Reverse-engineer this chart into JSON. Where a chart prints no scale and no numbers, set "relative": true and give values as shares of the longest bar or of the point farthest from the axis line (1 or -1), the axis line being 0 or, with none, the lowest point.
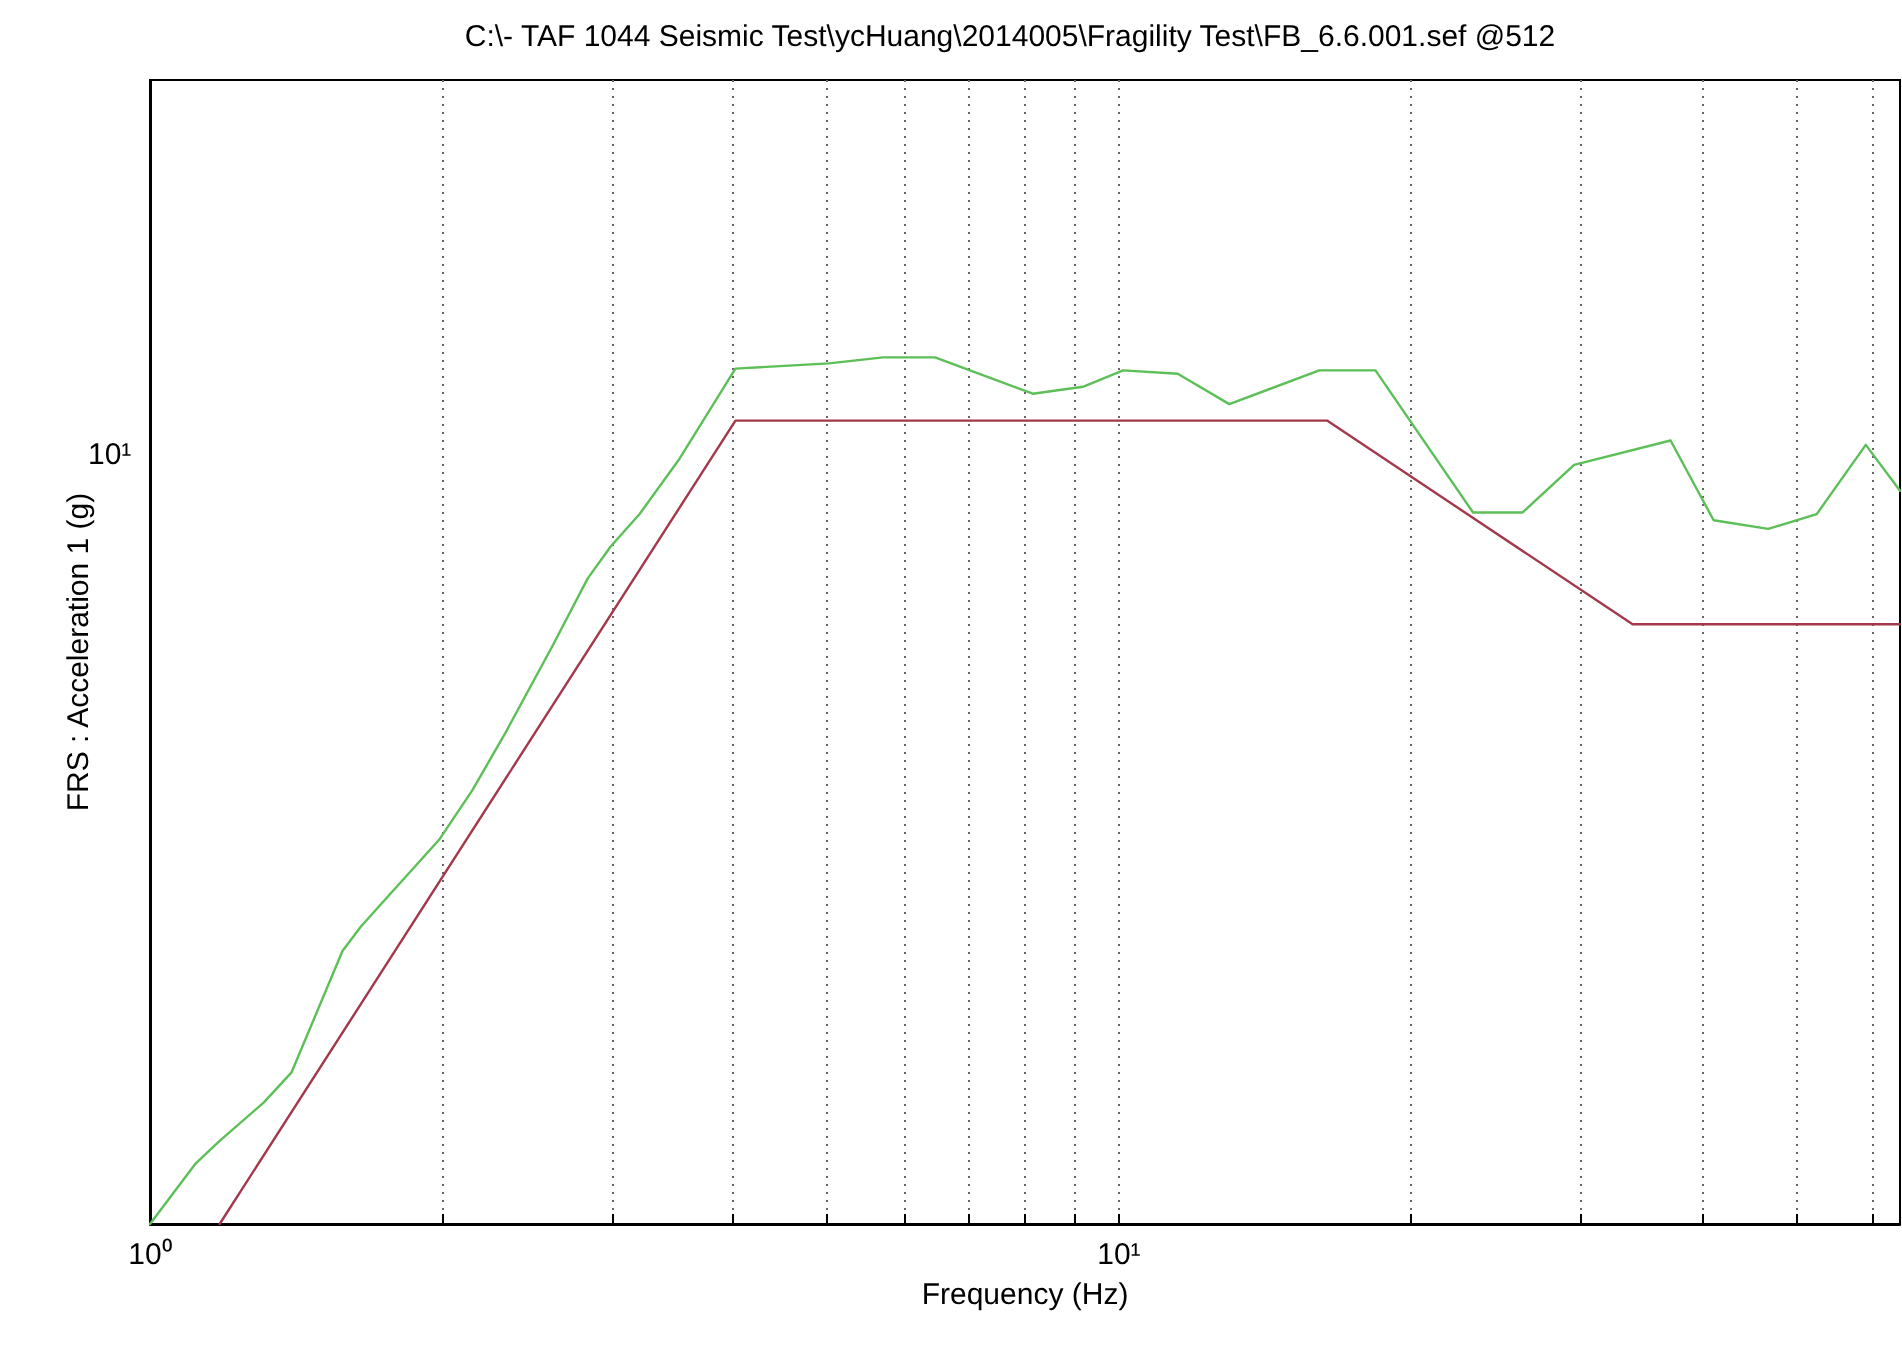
{
  "chart_data": {
    "type": "line",
    "title": "C:\\- TAF 1044 Seismic Test\\ycHuang\\2014005\\Fragility Test\\FB_6.6.001.sef @512",
    "xlabel": "Frequency (Hz)",
    "ylabel": "FRS : Acceleration 1 (g)",
    "annotations": [
      "10¹"
    ],
    "log": "x",
    "grid": "x",
    "marker": "none",
    "line_style": "solid",
    "relative": true,
    "xlim": [
      1,
      64
    ],
    "xticks": [
      {
        "value": 1,
        "label": "10⁰"
      },
      {
        "value": 2,
        "label": null
      },
      {
        "value": 3,
        "label": null
      },
      {
        "value": 4,
        "label": null
      },
      {
        "value": 5,
        "label": null
      },
      {
        "value": 6,
        "label": null
      },
      {
        "value": 7,
        "label": null
      },
      {
        "value": 8,
        "label": null
      },
      {
        "value": 9,
        "label": null
      },
      {
        "value": 10,
        "label": "10¹"
      },
      {
        "value": 20,
        "label": null
      },
      {
        "value": 30,
        "label": null
      },
      {
        "value": 40,
        "label": null
      },
      {
        "value": 50,
        "label": null
      },
      {
        "value": 60,
        "label": null
      }
    ],
    "series": [
      {
        "color": "#5cbf57",
        "x": [
          1,
          1.115,
          1.18,
          1.31,
          1.4,
          1.58,
          1.65,
          1.78,
          1.99,
          2.15,
          2.32,
          2.6,
          2.83,
          2.99,
          3.2,
          3.52,
          4.02,
          5.02,
          5.71,
          6.46,
          8.15,
          9.18,
          10.1,
          11.5,
          13,
          16.1,
          18.4,
          23.2,
          26.1,
          29.5,
          37.1,
          41.1,
          46.8,
          52.5,
          59,
          64
        ],
        "values": [
          0,
          0.07,
          0.096,
          0.14,
          0.175,
          0.315,
          0.343,
          0.384,
          0.444,
          0.5,
          0.564,
          0.666,
          0.745,
          0.782,
          0.819,
          0.883,
          0.987,
          0.993,
          1,
          1,
          0.958,
          0.966,
          0.985,
          0.981,
          0.946,
          0.985,
          0.985,
          0.821,
          0.821,
          0.876,
          0.904,
          0.812,
          0.802,
          0.819,
          0.899,
          0.846
        ]
      },
      {
        "color": "#a3384a",
        "x": [
          1.18,
          4.02,
          16.4,
          33.9,
          64
        ],
        "values": [
          0,
          0.927,
          0.927,
          0.692,
          0.692
        ]
      }
    ]
  }
}
